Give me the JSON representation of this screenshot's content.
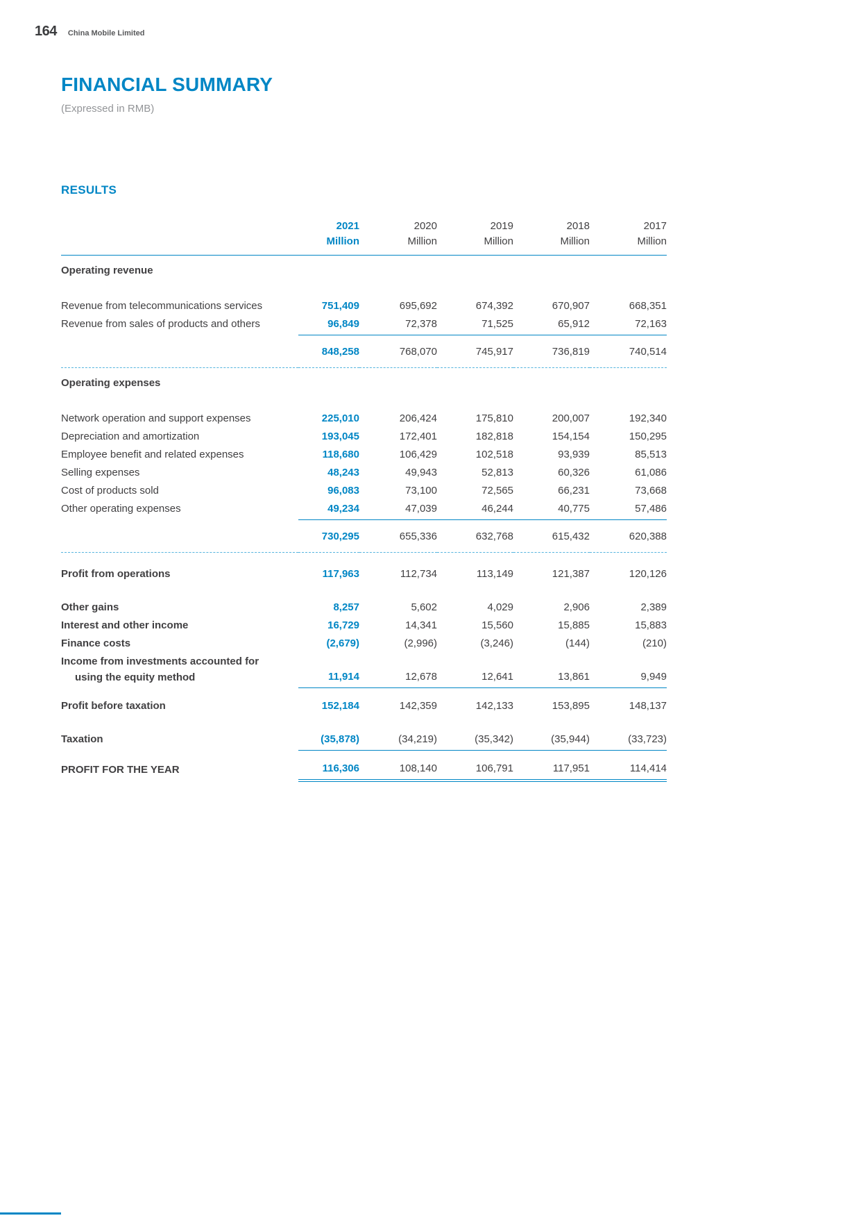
{
  "page": {
    "number": "164",
    "company": "China Mobile Limited",
    "title": "FINANCIAL SUMMARY",
    "subtitle": "(Expressed in RMB)",
    "section_heading": "RESULTS"
  },
  "colors": {
    "accent": "#0086C5",
    "text": "#414042",
    "muted": "#939598",
    "dashed_rule": "#55B4DE"
  },
  "table": {
    "columns": [
      {
        "year": "2021",
        "unit": "Million",
        "highlight": true
      },
      {
        "year": "2020",
        "unit": "Million",
        "highlight": false
      },
      {
        "year": "2019",
        "unit": "Million",
        "highlight": false
      },
      {
        "year": "2018",
        "unit": "Million",
        "highlight": false
      },
      {
        "year": "2017",
        "unit": "Million",
        "highlight": false
      }
    ],
    "rows": [
      {
        "kind": "section",
        "label": "Operating revenue"
      },
      {
        "kind": "item",
        "label": "Revenue from telecommunications services",
        "values": [
          "751,409",
          "695,692",
          "674,392",
          "670,907",
          "668,351"
        ]
      },
      {
        "kind": "item",
        "label": "Revenue from sales of products and others",
        "rule_below": "solid",
        "values": [
          "96,849",
          "72,378",
          "71,525",
          "65,912",
          "72,163"
        ]
      },
      {
        "kind": "total",
        "label": "",
        "rule_below": "dashed",
        "values": [
          "848,258",
          "768,070",
          "745,917",
          "736,819",
          "740,514"
        ]
      },
      {
        "kind": "section",
        "label": "Operating expenses"
      },
      {
        "kind": "item",
        "label": "Network operation and support expenses",
        "values": [
          "225,010",
          "206,424",
          "175,810",
          "200,007",
          "192,340"
        ]
      },
      {
        "kind": "item",
        "label": "Depreciation and amortization",
        "values": [
          "193,045",
          "172,401",
          "182,818",
          "154,154",
          "150,295"
        ]
      },
      {
        "kind": "item",
        "label": "Employee benefit and related expenses",
        "values": [
          "118,680",
          "106,429",
          "102,518",
          "93,939",
          "85,513"
        ]
      },
      {
        "kind": "item",
        "label": "Selling expenses",
        "values": [
          "48,243",
          "49,943",
          "52,813",
          "60,326",
          "61,086"
        ]
      },
      {
        "kind": "item",
        "label": "Cost of products sold",
        "values": [
          "96,083",
          "73,100",
          "72,565",
          "66,231",
          "73,668"
        ]
      },
      {
        "kind": "item",
        "label": "Other operating expenses",
        "rule_below": "solid",
        "values": [
          "49,234",
          "47,039",
          "46,244",
          "40,775",
          "57,486"
        ]
      },
      {
        "kind": "total",
        "label": "",
        "rule_below": "dashed",
        "values": [
          "730,295",
          "655,336",
          "632,768",
          "615,432",
          "620,388"
        ]
      },
      {
        "kind": "item",
        "bold": true,
        "gap": "lg",
        "label": "Profit from operations",
        "values": [
          "117,963",
          "112,734",
          "113,149",
          "121,387",
          "120,126"
        ]
      },
      {
        "kind": "item",
        "bold": true,
        "gap": "xl",
        "label": "Other gains",
        "values": [
          "8,257",
          "5,602",
          "4,029",
          "2,906",
          "2,389"
        ]
      },
      {
        "kind": "item",
        "bold": true,
        "label": "Interest and other income",
        "values": [
          "16,729",
          "14,341",
          "15,560",
          "15,885",
          "15,883"
        ]
      },
      {
        "kind": "item",
        "bold": true,
        "label": "Finance costs",
        "values": [
          "(2,679)",
          "(2,996)",
          "(3,246)",
          "(144)",
          "(210)"
        ]
      },
      {
        "kind": "label-only",
        "bold": true,
        "label": "Income from investments accounted for"
      },
      {
        "kind": "item",
        "bold": true,
        "indent": true,
        "label": "using the equity method",
        "rule_below": "solid",
        "values": [
          "11,914",
          "12,678",
          "12,641",
          "13,861",
          "9,949"
        ]
      },
      {
        "kind": "item",
        "bold": true,
        "gap": "md",
        "label": "Profit before taxation",
        "values": [
          "152,184",
          "142,359",
          "142,133",
          "153,895",
          "148,137"
        ]
      },
      {
        "kind": "item",
        "bold": true,
        "gap": "xl",
        "label": "Taxation",
        "rule_below": "solid",
        "values": [
          "(35,878)",
          "(34,219)",
          "(35,342)",
          "(35,944)",
          "(33,723)"
        ]
      },
      {
        "kind": "item",
        "bold": true,
        "gap": "md",
        "label": "PROFIT FOR THE YEAR",
        "rule_below": "double",
        "values": [
          "116,306",
          "108,140",
          "106,791",
          "117,951",
          "114,414"
        ]
      }
    ]
  }
}
